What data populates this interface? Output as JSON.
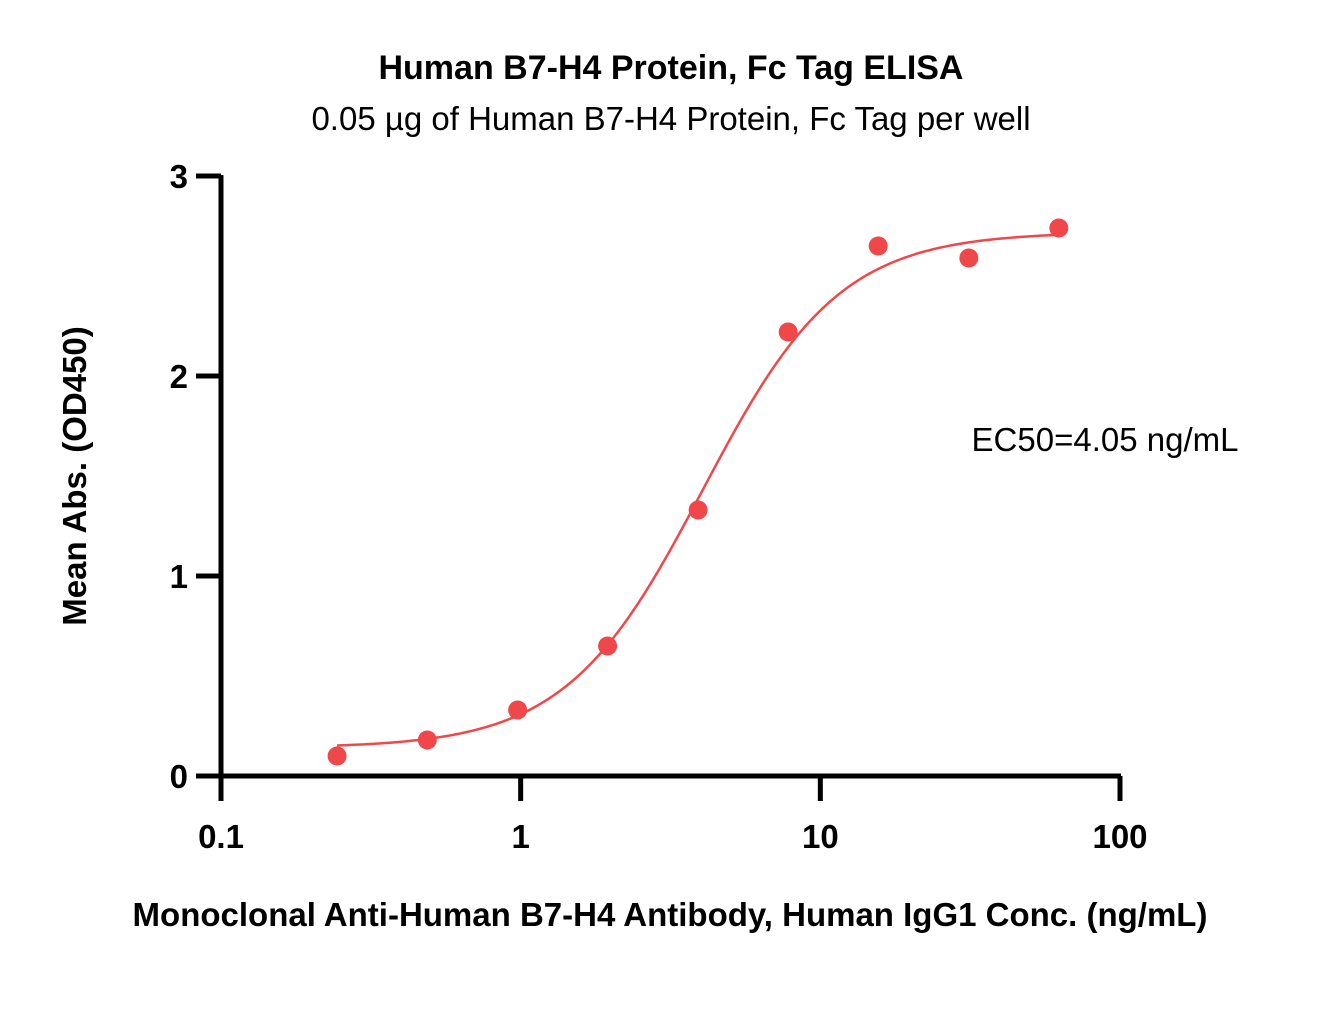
{
  "chart_data": {
    "type": "scatter",
    "title": "Human B7-H4 Protein, Fc Tag ELISA",
    "subtitle": "0.05 µg of Human B7-H4 Protein, Fc Tag per well",
    "xlabel": "Monoclonal Anti-Human B7-H4 Antibody, Human IgG1 Conc. (ng/mL)",
    "ylabel": "Mean Abs. (OD450)",
    "xscale": "log",
    "xlim": [
      0.1,
      100
    ],
    "ylim": [
      0,
      3
    ],
    "xticks": [
      {
        "value": 0.1,
        "label": "0.1"
      },
      {
        "value": 1,
        "label": "1"
      },
      {
        "value": 10,
        "label": "10"
      },
      {
        "value": 100,
        "label": "100"
      }
    ],
    "yticks": [
      {
        "value": 0,
        "label": "0"
      },
      {
        "value": 1,
        "label": "1"
      },
      {
        "value": 2,
        "label": "2"
      },
      {
        "value": 3,
        "label": "3"
      }
    ],
    "color": "#f0484a",
    "points": [
      {
        "x": 0.244,
        "y": 0.1
      },
      {
        "x": 0.488,
        "y": 0.18
      },
      {
        "x": 0.977,
        "y": 0.33
      },
      {
        "x": 1.95,
        "y": 0.65
      },
      {
        "x": 3.91,
        "y": 1.33
      },
      {
        "x": 7.81,
        "y": 2.22
      },
      {
        "x": 15.6,
        "y": 2.65
      },
      {
        "x": 31.3,
        "y": 2.59
      },
      {
        "x": 62.5,
        "y": 2.74
      }
    ],
    "fit": {
      "model": "4PL",
      "bottom": 0.14,
      "top": 2.72,
      "ec50": 4.05,
      "hill": 1.9
    },
    "annotation": "EC50=4.05 ng/mL",
    "grid": false,
    "legend": "none"
  }
}
